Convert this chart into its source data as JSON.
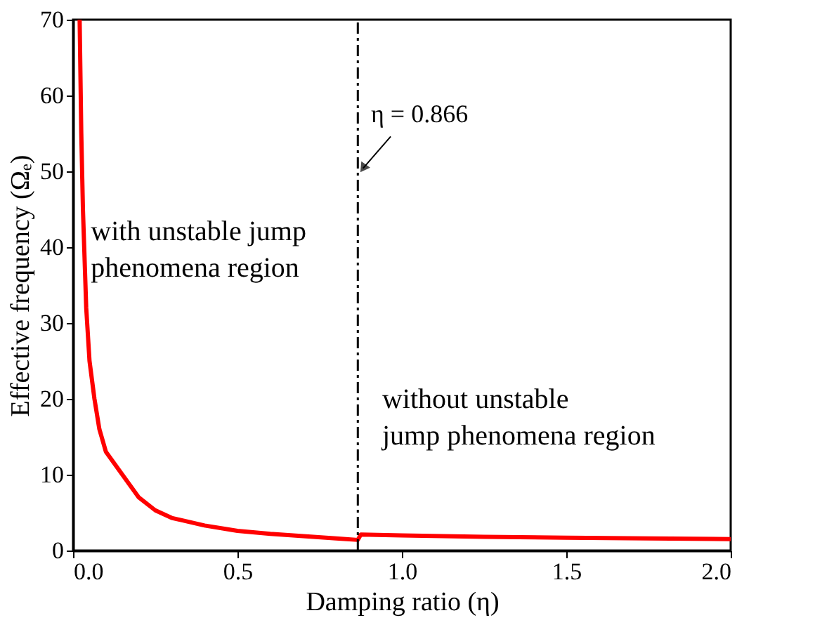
{
  "chart_data": {
    "type": "line",
    "xlabel": "Damping ratio (η)",
    "ylabel": "Effective frequency (Ωₑ)",
    "x": [
      0.02,
      0.025,
      0.03,
      0.04,
      0.05,
      0.065,
      0.08,
      0.1,
      0.125,
      0.15,
      0.175,
      0.2,
      0.25,
      0.3,
      0.4,
      0.5,
      0.6,
      0.7,
      0.8,
      0.866,
      0.875,
      1.0,
      1.25,
      1.5,
      1.75,
      2.0
    ],
    "series": [
      {
        "color": "#ff0000",
        "values": [
          70,
          55,
          45,
          32,
          25,
          20,
          16,
          13,
          11.5,
          10,
          8.5,
          7,
          5.3,
          4.3,
          3.3,
          2.6,
          2.2,
          1.9,
          1.6,
          1.4,
          2.1,
          2.0,
          1.8,
          1.7,
          1.6,
          1.5
        ]
      }
    ],
    "xlim": [
      0,
      2
    ],
    "ylim": [
      0,
      70
    ],
    "xticks": [
      {
        "value": 0,
        "label": "0.0"
      },
      {
        "value": 0.5,
        "label": "0.5"
      },
      {
        "value": 1,
        "label": "1.0"
      },
      {
        "value": 1.5,
        "label": "1.5"
      },
      {
        "value": 2,
        "label": "2.0"
      }
    ],
    "yticks": [
      0,
      10,
      20,
      30,
      40,
      50,
      60,
      70
    ],
    "ref_lines": [
      {
        "axis": "x",
        "value": 0.866,
        "label": "η = 0.866",
        "color": "#000000",
        "line_style": "dashed"
      }
    ],
    "annotations": [
      "with unstable jump\nphenomena region",
      "without unstable\njump phenomena region"
    ],
    "grid": false,
    "line_style": "solid",
    "marker": "none"
  }
}
